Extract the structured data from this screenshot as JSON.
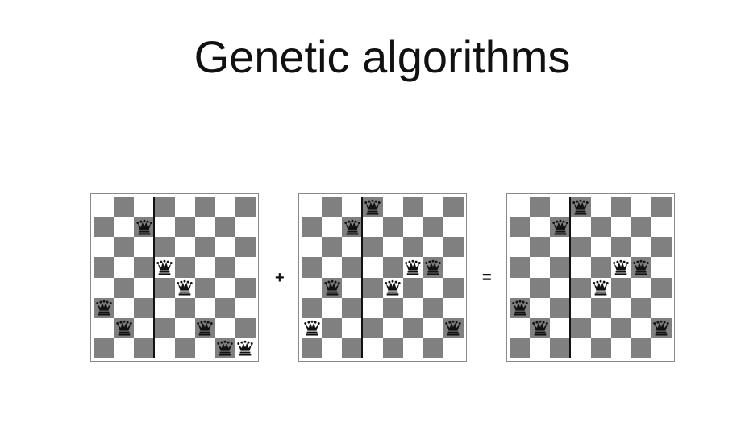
{
  "title": "Genetic algorithms",
  "operators": {
    "plus": "+",
    "equals": "="
  },
  "colors": {
    "dark_square": "#808080",
    "light_square": "#ffffff",
    "queen": "#111111",
    "divider": "#111111"
  },
  "piece_icon": "chess-queen-icon",
  "boards": [
    {
      "name": "parent-1",
      "queen_rows_from_top": [
        5,
        6,
        1,
        3,
        4,
        6,
        7,
        7
      ],
      "crossover_after_column": 3
    },
    {
      "name": "parent-2",
      "queen_rows_from_top": [
        6,
        4,
        1,
        0,
        4,
        3,
        3,
        6
      ],
      "crossover_after_column": 3
    },
    {
      "name": "child",
      "queen_rows_from_top": [
        5,
        6,
        1,
        0,
        4,
        3,
        3,
        6
      ],
      "crossover_after_column": 3
    }
  ]
}
